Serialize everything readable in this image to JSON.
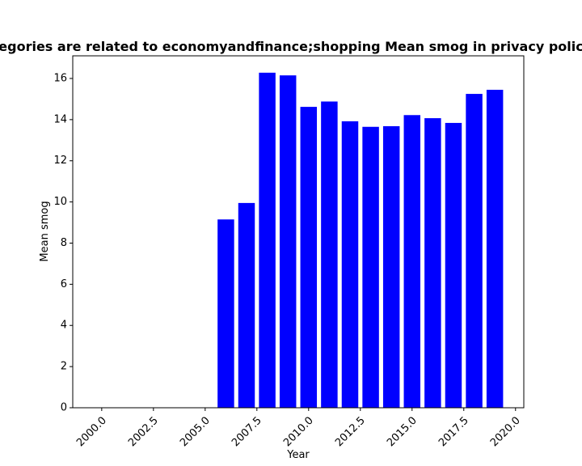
{
  "chart_data": {
    "type": "bar",
    "title": "egories are related to economyandfinance;shopping Mean smog in privacy polic",
    "xlabel": "Year",
    "ylabel": "Mean smog",
    "x": [
      2006,
      2007,
      2008,
      2009,
      2010,
      2011,
      2012,
      2013,
      2014,
      2015,
      2016,
      2017,
      2018,
      2019
    ],
    "values": [
      9.15,
      9.95,
      16.28,
      16.15,
      14.62,
      14.88,
      13.92,
      13.65,
      13.68,
      14.22,
      14.07,
      13.84,
      15.25,
      15.45
    ],
    "xlim": [
      1998.6,
      2020.4
    ],
    "ylim": [
      0,
      17.1
    ],
    "xticks": [
      "2000.0",
      "2002.5",
      "2005.0",
      "2007.5",
      "2010.0",
      "2012.5",
      "2015.0",
      "2017.5",
      "2020.0"
    ],
    "yticks": [
      "0",
      "2",
      "4",
      "6",
      "8",
      "10",
      "12",
      "14",
      "16"
    ],
    "bar_color": "#0000ff",
    "grid": false,
    "legend": "none"
  }
}
